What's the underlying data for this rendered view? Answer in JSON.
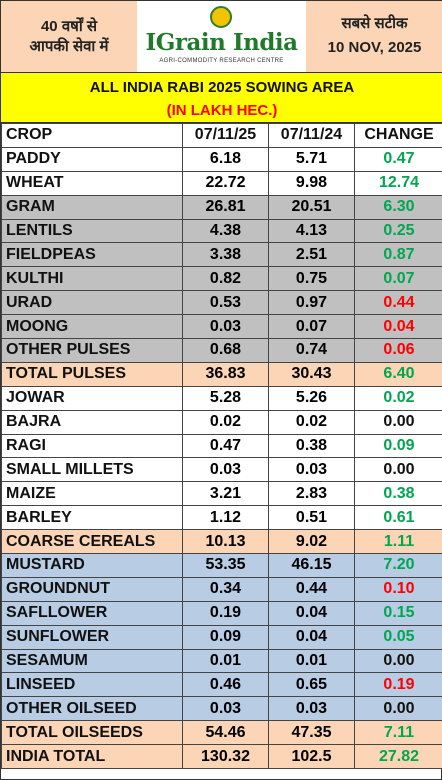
{
  "header": {
    "left_line1": "40 वर्षों से",
    "left_line2": "आपकी सेवा में",
    "logo_name": "IGrain India",
    "logo_tagline": "AGRI-COMMODITY RESEARCH CENTRE",
    "right_line1": "सबसे सटीक",
    "right_date": "10 NOV, 2025"
  },
  "title": {
    "line1": "ALL INDIA RABI 2025 SOWING AREA",
    "line2": "(IN LAKH HEC.)"
  },
  "table": {
    "headers": [
      "CROP",
      "07/11/25",
      "07/11/24",
      "CHANGE"
    ],
    "rows": [
      {
        "crop": "PADDY",
        "y2025": "6.18",
        "y2024": "5.71",
        "change": "0.47"
      },
      {
        "crop": "WHEAT",
        "y2025": "22.72",
        "y2024": "9.98",
        "change": "12.74"
      },
      {
        "crop": "GRAM",
        "y2025": "26.81",
        "y2024": "20.51",
        "change": "6.30"
      },
      {
        "crop": "LENTILS",
        "y2025": "4.38",
        "y2024": "4.13",
        "change": "0.25"
      },
      {
        "crop": "FIELDPEAS",
        "y2025": "3.38",
        "y2024": "2.51",
        "change": "0.87"
      },
      {
        "crop": "KULTHI",
        "y2025": "0.82",
        "y2024": "0.75",
        "change": "0.07"
      },
      {
        "crop": "URAD",
        "y2025": "0.53",
        "y2024": "0.97",
        "change": "0.44"
      },
      {
        "crop": "MOONG",
        "y2025": "0.03",
        "y2024": "0.07",
        "change": "0.04"
      },
      {
        "crop": "OTHER PULSES",
        "y2025": "0.68",
        "y2024": "0.74",
        "change": "0.06"
      },
      {
        "crop": "TOTAL PULSES",
        "y2025": "36.83",
        "y2024": "30.43",
        "change": "6.40"
      },
      {
        "crop": "JOWAR",
        "y2025": "5.28",
        "y2024": "5.26",
        "change": "0.02"
      },
      {
        "crop": "BAJRA",
        "y2025": "0.02",
        "y2024": "0.02",
        "change": "0.00"
      },
      {
        "crop": "RAGI",
        "y2025": "0.47",
        "y2024": "0.38",
        "change": "0.09"
      },
      {
        "crop": "SMALL MILLETS",
        "y2025": "0.03",
        "y2024": "0.03",
        "change": "0.00"
      },
      {
        "crop": "MAIZE",
        "y2025": "3.21",
        "y2024": "2.83",
        "change": "0.38"
      },
      {
        "crop": "BARLEY",
        "y2025": "1.12",
        "y2024": "0.51",
        "change": "0.61"
      },
      {
        "crop": "COARSE CEREALS",
        "y2025": "10.13",
        "y2024": "9.02",
        "change": "1.11"
      },
      {
        "crop": "MUSTARD",
        "y2025": "53.35",
        "y2024": "46.15",
        "change": "7.20"
      },
      {
        "crop": "GROUNDNUT",
        "y2025": "0.34",
        "y2024": "0.44",
        "change": "0.10"
      },
      {
        "crop": "SAFLLOWER",
        "y2025": "0.19",
        "y2024": "0.04",
        "change": "0.15"
      },
      {
        "crop": "SUNFLOWER",
        "y2025": "0.09",
        "y2024": "0.04",
        "change": "0.05"
      },
      {
        "crop": "SESAMUM",
        "y2025": "0.01",
        "y2024": "0.01",
        "change": "0.00"
      },
      {
        "crop": "LINSEED",
        "y2025": "0.46",
        "y2024": "0.65",
        "change": "0.19"
      },
      {
        "crop": "OTHER OILSEED",
        "y2025": "0.03",
        "y2024": "0.03",
        "change": "0.00"
      },
      {
        "crop": "TOTAL OILSEEDS",
        "y2025": "54.46",
        "y2024": "47.35",
        "change": "7.11"
      },
      {
        "crop": "INDIA TOTAL",
        "y2025": "130.32",
        "y2024": "102.5",
        "change": "27.82"
      }
    ]
  },
  "colors": {
    "header_bg": "#fbd5b5",
    "title_bg": "#ffff00",
    "title_unit": "#ff0000",
    "increase": "#00a650",
    "decrease": "#ff0000",
    "pulses_rows": "#c0c0c0",
    "total_rows": "#fbd5b5",
    "oilseed_rows": "#b8cce4"
  }
}
